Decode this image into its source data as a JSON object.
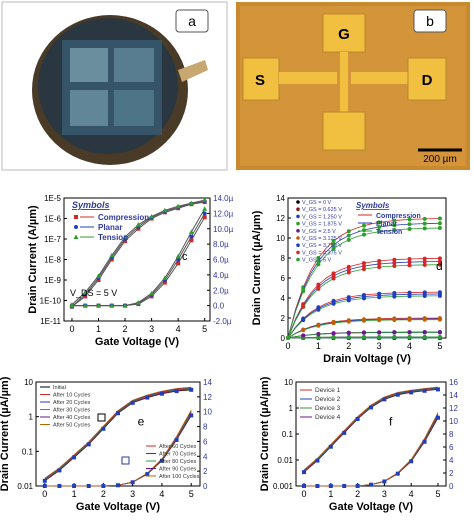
{
  "panels": {
    "a": {
      "label": "a"
    },
    "b": {
      "label": "b",
      "pad_g": "G",
      "pad_s": "S",
      "pad_d": "D",
      "scalebar": "200 µm"
    }
  },
  "colors": {
    "compression": "#d62728",
    "planar": "#1f3fbf",
    "tension": "#2ca02c",
    "fit": "#000000",
    "accent_blue": "#2e3a9e"
  },
  "chart_data": [
    {
      "panel": "c",
      "type": "line",
      "xlabel": "Gate Voltage (V)",
      "ylabel": "Drain Current (A/µm)",
      "y2label": "",
      "annotation": "V_DS = 5 V",
      "xticks": [
        "0",
        "1",
        "2",
        "3",
        "4",
        "5"
      ],
      "yticks_left": [
        "1E-11",
        "1E-10",
        "1E-9",
        "1E-8",
        "1E-7",
        "1E-6",
        "1E-5"
      ],
      "yticks_right": [
        "-2.0µ",
        "0.0",
        "2.0µ",
        "4.0µ",
        "6.0µ",
        "8.0µ",
        "10.0µ",
        "12.0µ",
        "14.0µ"
      ],
      "legend_title": "Symbols",
      "legend": [
        "Compression",
        "Planar",
        "Tension"
      ],
      "xlim": [
        -0.3,
        5.2
      ],
      "ylim_log": [
        -11,
        -5
      ],
      "ylim_lin": [
        -2.0,
        14.0
      ],
      "series": [
        {
          "name": "Compression",
          "x": [
            0,
            0.5,
            1,
            1.5,
            2,
            2.5,
            3,
            3.5,
            4,
            4.5,
            5
          ],
          "y_log": [
            -10.3,
            -9.8,
            -9.0,
            -8.0,
            -7.1,
            -6.5,
            -6.0,
            -5.7,
            -5.5,
            -5.3,
            -5.2
          ],
          "y_lin": [
            0,
            0,
            0,
            0,
            0,
            0.2,
            1.2,
            3.0,
            5.5,
            8.5,
            11.5
          ]
        },
        {
          "name": "Planar",
          "x": [
            0,
            0.5,
            1,
            1.5,
            2,
            2.5,
            3,
            3.5,
            4,
            4.5,
            5
          ],
          "y_log": [
            -10.3,
            -9.7,
            -8.9,
            -7.9,
            -7.0,
            -6.4,
            -5.95,
            -5.65,
            -5.45,
            -5.28,
            -5.15
          ],
          "y_lin": [
            0,
            0,
            0,
            0,
            0,
            0.3,
            1.4,
            3.3,
            6.0,
            9.0,
            12.0
          ]
        },
        {
          "name": "Tension",
          "x": [
            0,
            0.5,
            1,
            1.5,
            2,
            2.5,
            3,
            3.5,
            4,
            4.5,
            5
          ],
          "y_log": [
            -10.2,
            -9.6,
            -8.8,
            -7.8,
            -6.9,
            -6.3,
            -5.9,
            -5.6,
            -5.4,
            -5.25,
            -5.1
          ],
          "y_lin": [
            0,
            0,
            0,
            0,
            0,
            0.4,
            1.6,
            3.6,
            6.4,
            9.6,
            12.6
          ]
        }
      ]
    },
    {
      "panel": "d",
      "type": "line",
      "xlabel": "Drain Voltage (V)",
      "ylabel": "Drain Current (µA/µm)",
      "xticks": [
        "0",
        "1",
        "2",
        "3",
        "4",
        "5"
      ],
      "yticks": [
        "0",
        "2",
        "4",
        "6",
        "8",
        "10",
        "12",
        "14"
      ],
      "xlim": [
        0,
        5.2
      ],
      "ylim": [
        0,
        14
      ],
      "vgs_legend": [
        "V_GS = 0 V",
        "V_GS = 0.625 V",
        "V_GS = 1.250 V",
        "V_GS = 1.875 V",
        "V_GS = 2.5 V",
        "V_GS = 3.125 V",
        "V_GS = 3.750 V",
        "V_GS = 4.375 V",
        "V_GS = 5 V"
      ],
      "legend_title": "Symbols",
      "legend": [
        "Compression",
        "Planar",
        "Tension"
      ],
      "curves_saturation": [
        0,
        0,
        0,
        0.1,
        0.6,
        2.0,
        4.6,
        8.0,
        12.0
      ]
    },
    {
      "panel": "e",
      "type": "line",
      "xlabel": "Gate Voltage (V)",
      "ylabel": "Drain Current (µA/µm)",
      "xticks": [
        "0",
        "1",
        "2",
        "3",
        "4",
        "5"
      ],
      "yticks_left": [
        "0.01",
        "0.1",
        "1",
        "10"
      ],
      "yticks_right": [
        "0",
        "2",
        "4",
        "6",
        "8",
        "10",
        "12",
        "14"
      ],
      "legend_left": [
        "Initial",
        "After 10 Cycles",
        "After 20 Cycles",
        "After 30 Cycles",
        "After 40 Cycles",
        "After 50 Cycles"
      ],
      "legend_right": [
        "After 60 Cycles",
        "After 70 Cycles",
        "After 80 Cycles",
        "After 90 Cycles",
        "After 100 Cycles"
      ],
      "xlim": [
        -0.3,
        5.3
      ],
      "series": [
        {
          "name": "log",
          "x": [
            0,
            0.5,
            1,
            1.5,
            2,
            2.5,
            3,
            3.5,
            4,
            4.5,
            5
          ],
          "y_log": [
            -2.3,
            -1.9,
            -1.4,
            -0.9,
            -0.3,
            0.3,
            0.7,
            0.9,
            1.05,
            1.15,
            1.2
          ]
        },
        {
          "name": "lin",
          "x": [
            0,
            0.5,
            1,
            1.5,
            2,
            2.5,
            3,
            3.5,
            4,
            4.5,
            5
          ],
          "y_lin": [
            0,
            0,
            0,
            0,
            0,
            0.1,
            0.5,
            1.6,
            3.4,
            6.2,
            9.5
          ]
        }
      ]
    },
    {
      "panel": "f",
      "type": "line",
      "xlabel": "Gate Voltage (V)",
      "ylabel": "Drain Current (µA/µm)",
      "xticks": [
        "0",
        "1",
        "2",
        "3",
        "4",
        "5"
      ],
      "yticks_left": [
        "0.001",
        "0.01",
        "0.1",
        "1",
        "10"
      ],
      "yticks_right": [
        "0",
        "2",
        "4",
        "6",
        "8",
        "10",
        "12",
        "14",
        "16"
      ],
      "legend": [
        "Device 1",
        "Device 2",
        "Device 3",
        "Device 4"
      ],
      "xlim": [
        -0.3,
        5.3
      ],
      "series": [
        {
          "name": "log",
          "x": [
            0,
            0.5,
            1,
            1.5,
            2,
            2.5,
            3,
            3.5,
            4,
            4.5,
            5
          ],
          "y_log": [
            -2.4,
            -1.9,
            -1.3,
            -0.7,
            -0.1,
            0.4,
            0.75,
            0.95,
            1.05,
            1.12,
            1.18
          ]
        },
        {
          "name": "lin",
          "x": [
            0,
            0.5,
            1,
            1.5,
            2,
            2.5,
            3,
            3.5,
            4,
            4.5,
            5
          ],
          "y_lin": [
            0,
            0,
            0,
            0,
            0,
            0.2,
            0.7,
            1.9,
            3.8,
            6.8,
            10.5
          ]
        }
      ]
    }
  ]
}
